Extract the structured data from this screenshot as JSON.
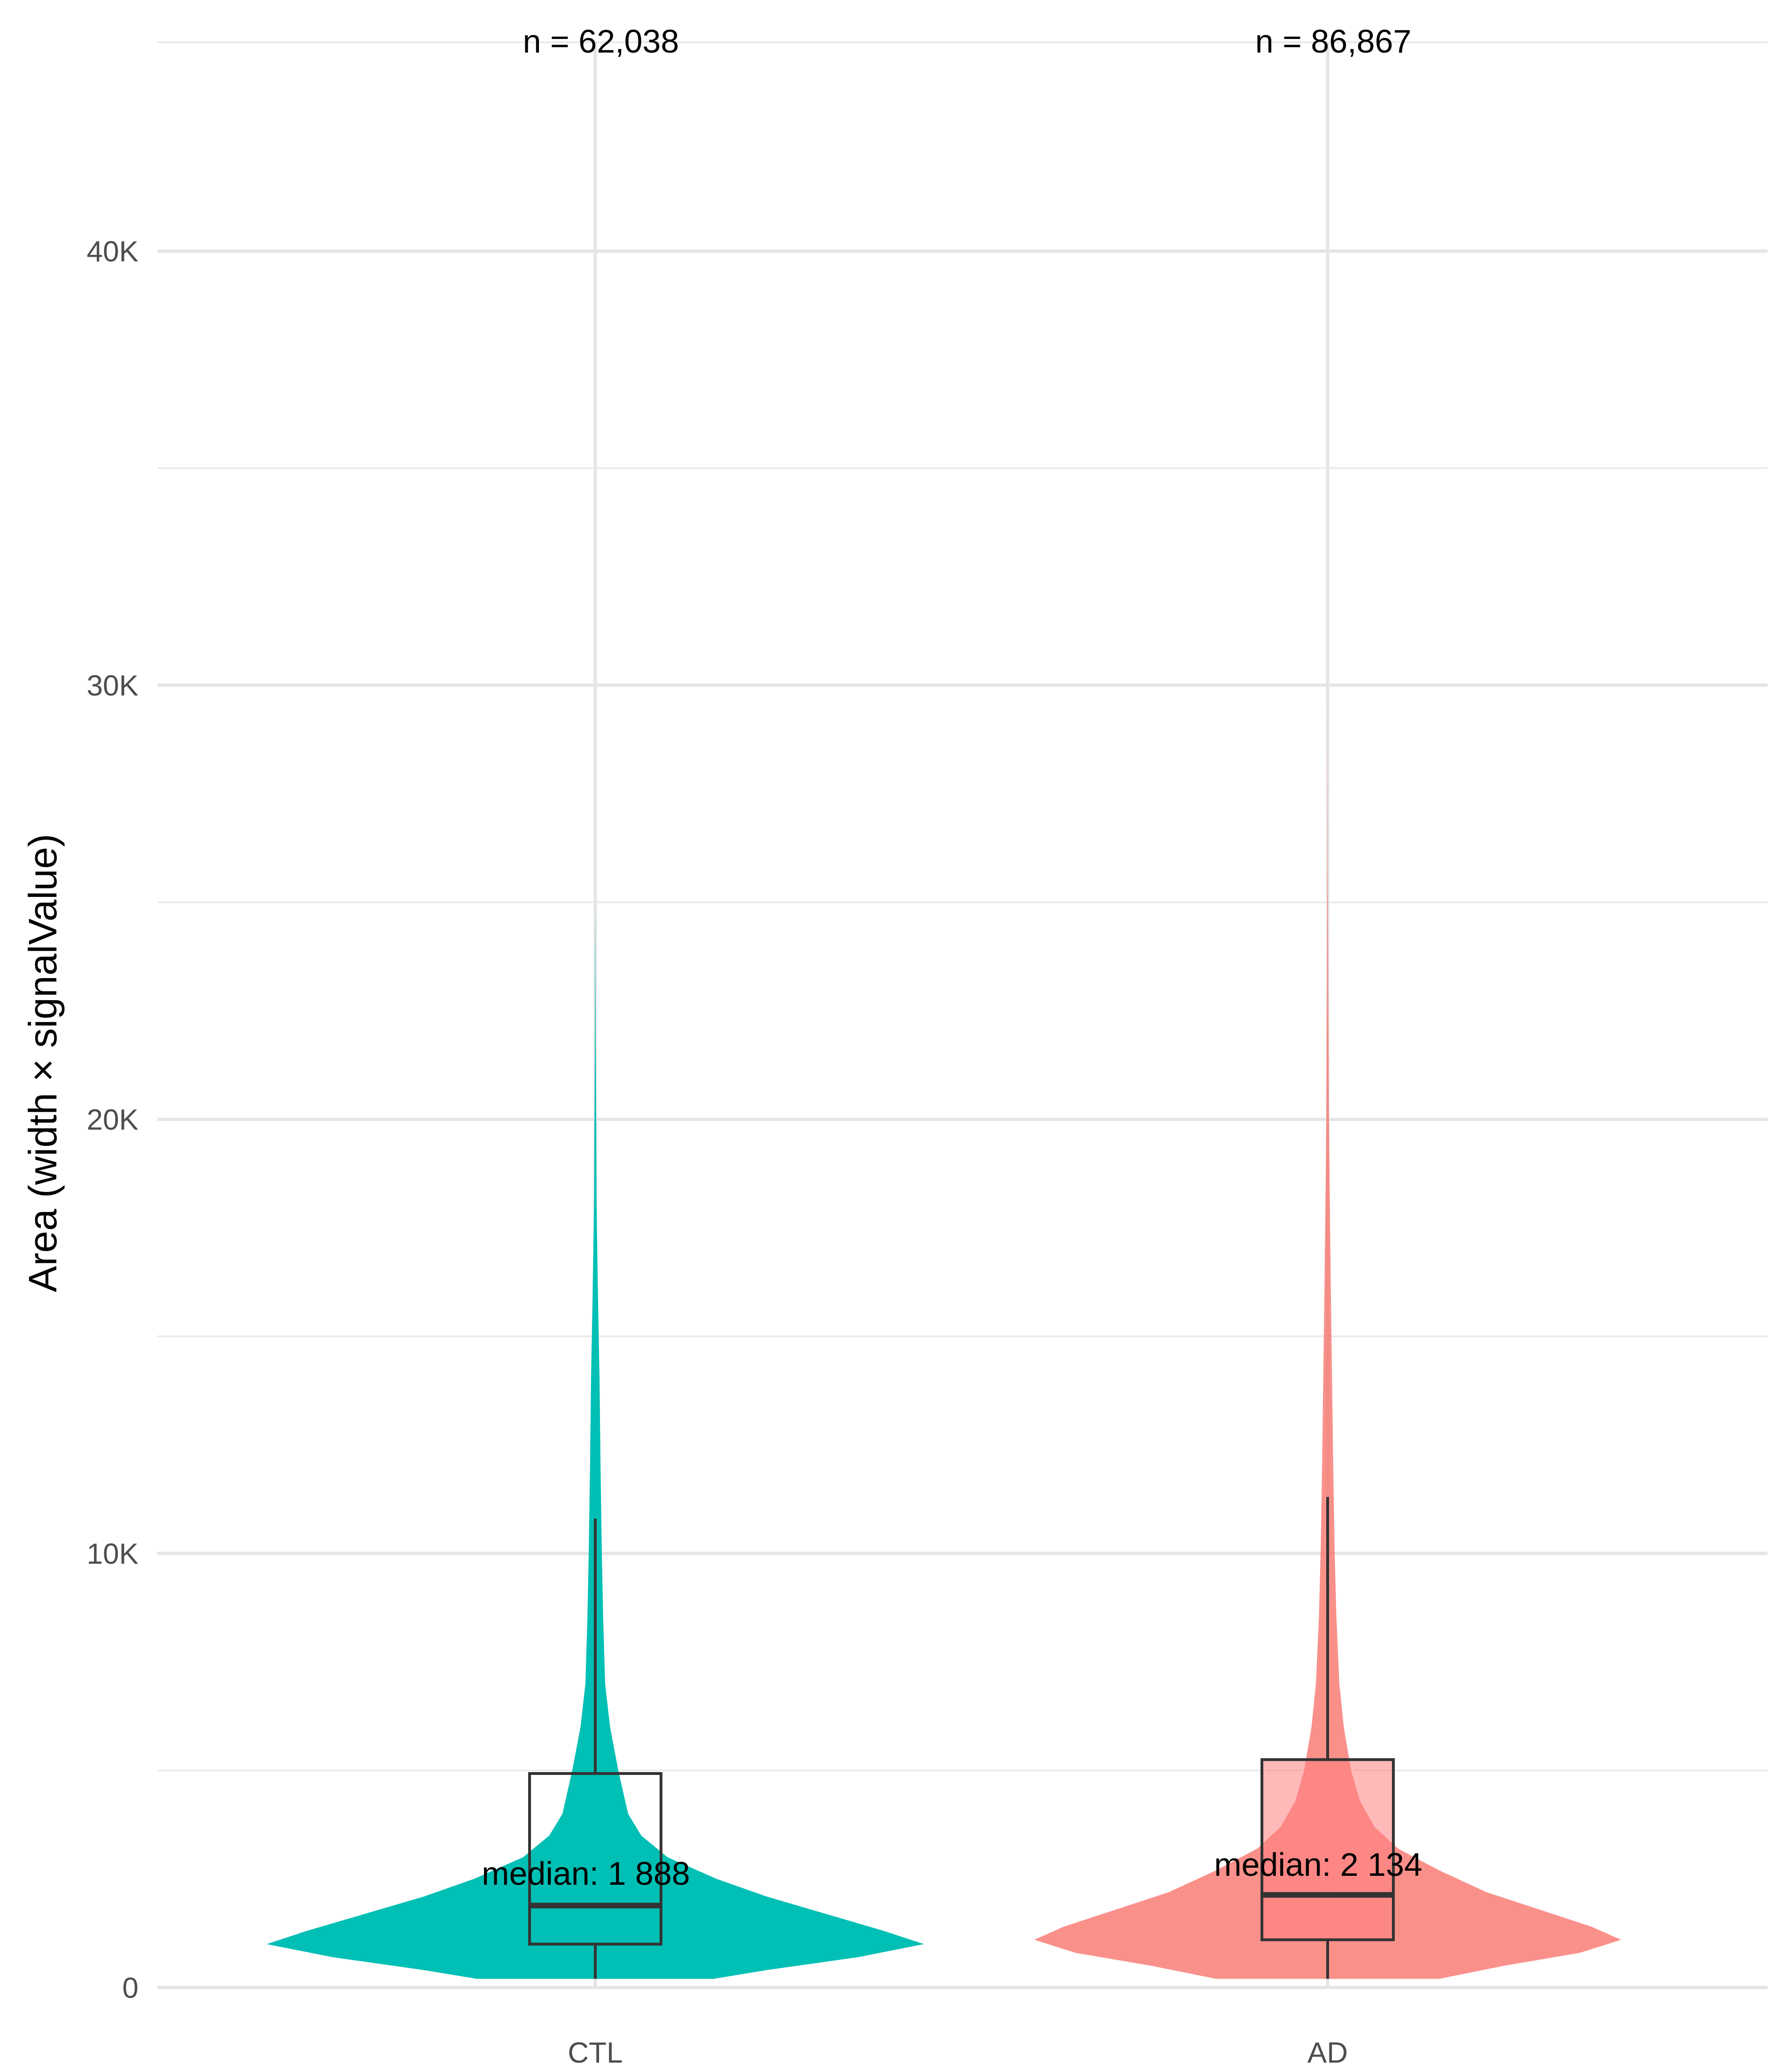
{
  "chart_data": {
    "type": "violin",
    "ylabel": "Area (width × signalValue)",
    "xlabel": "",
    "ylim": [
      -500,
      45000
    ],
    "yticks": [
      {
        "value": 0,
        "label": "0"
      },
      {
        "value": 10000,
        "label": "10K"
      },
      {
        "value": 20000,
        "label": "20K"
      },
      {
        "value": 30000,
        "label": "30K"
      },
      {
        "value": 40000,
        "label": "40K"
      }
    ],
    "minor_gridlines": [
      5000,
      15000,
      25000,
      35000
    ],
    "grid": true,
    "categories": [
      "CTL",
      "AD"
    ],
    "groups": [
      {
        "name": "CTL",
        "color": "#00BFB4",
        "n_label": "n = 62,038",
        "median_label": "median: 1 888",
        "box": {
          "q1": 1000,
          "median": 1888,
          "q3": 4930,
          "whisker_low": 200,
          "whisker_high": 10800
        },
        "violin_max": 25000,
        "density": [
          [
            200,
            0.36
          ],
          [
            400,
            0.52
          ],
          [
            700,
            0.8
          ],
          [
            1000,
            1.0
          ],
          [
            1300,
            0.88
          ],
          [
            1700,
            0.7
          ],
          [
            2100,
            0.52
          ],
          [
            2500,
            0.37
          ],
          [
            3000,
            0.22
          ],
          [
            3500,
            0.14
          ],
          [
            4000,
            0.1
          ],
          [
            5000,
            0.07
          ],
          [
            6000,
            0.045
          ],
          [
            7000,
            0.03
          ],
          [
            8500,
            0.024
          ],
          [
            10000,
            0.02
          ],
          [
            12000,
            0.016
          ],
          [
            14000,
            0.013
          ],
          [
            16000,
            0.008
          ],
          [
            18000,
            0.004
          ],
          [
            20000,
            0.0025
          ],
          [
            22000,
            0.0012
          ],
          [
            24000,
            0.0004
          ],
          [
            25000,
            0.0
          ]
        ]
      },
      {
        "name": "AD",
        "color": "#F8766D",
        "n_label": "n = 86,867",
        "median_label": "median: 2 134",
        "box": {
          "q1": 1100,
          "median": 2134,
          "q3": 5250,
          "whisker_low": 200,
          "whisker_high": 11300
        },
        "violin_max": 30000,
        "density": [
          [
            200,
            0.38
          ],
          [
            500,
            0.6
          ],
          [
            800,
            0.86
          ],
          [
            1100,
            1.0
          ],
          [
            1400,
            0.9
          ],
          [
            1800,
            0.72
          ],
          [
            2200,
            0.54
          ],
          [
            2700,
            0.38
          ],
          [
            3200,
            0.24
          ],
          [
            3700,
            0.16
          ],
          [
            4300,
            0.11
          ],
          [
            5000,
            0.08
          ],
          [
            6000,
            0.055
          ],
          [
            7000,
            0.04
          ],
          [
            8500,
            0.03
          ],
          [
            10000,
            0.024
          ],
          [
            12000,
            0.019
          ],
          [
            14000,
            0.015
          ],
          [
            16000,
            0.011
          ],
          [
            18000,
            0.0075
          ],
          [
            20000,
            0.0045
          ],
          [
            23000,
            0.0022
          ],
          [
            26000,
            0.0008
          ],
          [
            28000,
            0.0003
          ],
          [
            30000,
            0.0
          ]
        ]
      }
    ]
  }
}
